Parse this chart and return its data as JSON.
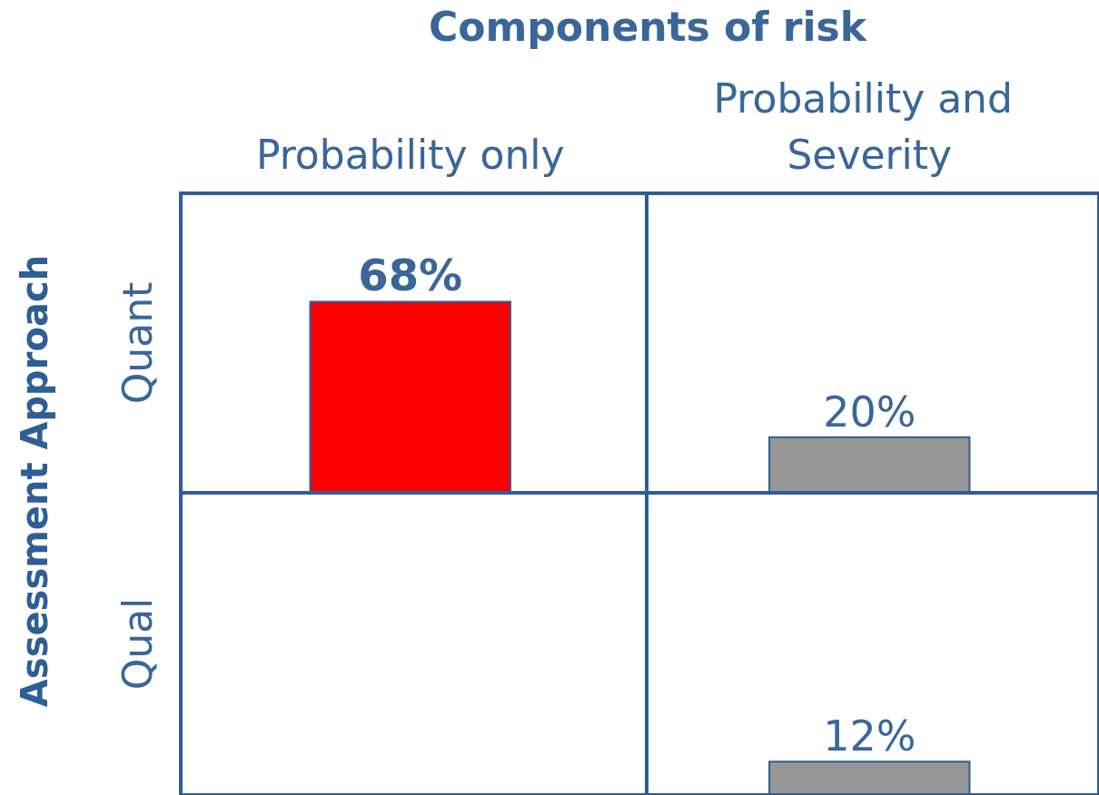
{
  "chart_data": [
    {
      "type": "bar",
      "title": "Components of risk",
      "ylabel": "Quant",
      "annotations": [
        "Assessment Approach"
      ],
      "categories": [
        "Probability only",
        "Probability and Severity"
      ],
      "values": [
        68,
        20
      ],
      "value_labels": [
        "68%",
        "20%"
      ],
      "colors": [
        "#ff0000",
        "#969696"
      ],
      "tick_labels": "x"
    },
    {
      "type": "bar",
      "ylabel": "Qual",
      "categories": [
        "Probability only",
        "Probability and Severity"
      ],
      "values": [
        null,
        12
      ],
      "value_labels": [
        null,
        "12%"
      ],
      "colors": [
        "#ff0000",
        "#969696"
      ],
      "tick_labels": false
    }
  ]
}
